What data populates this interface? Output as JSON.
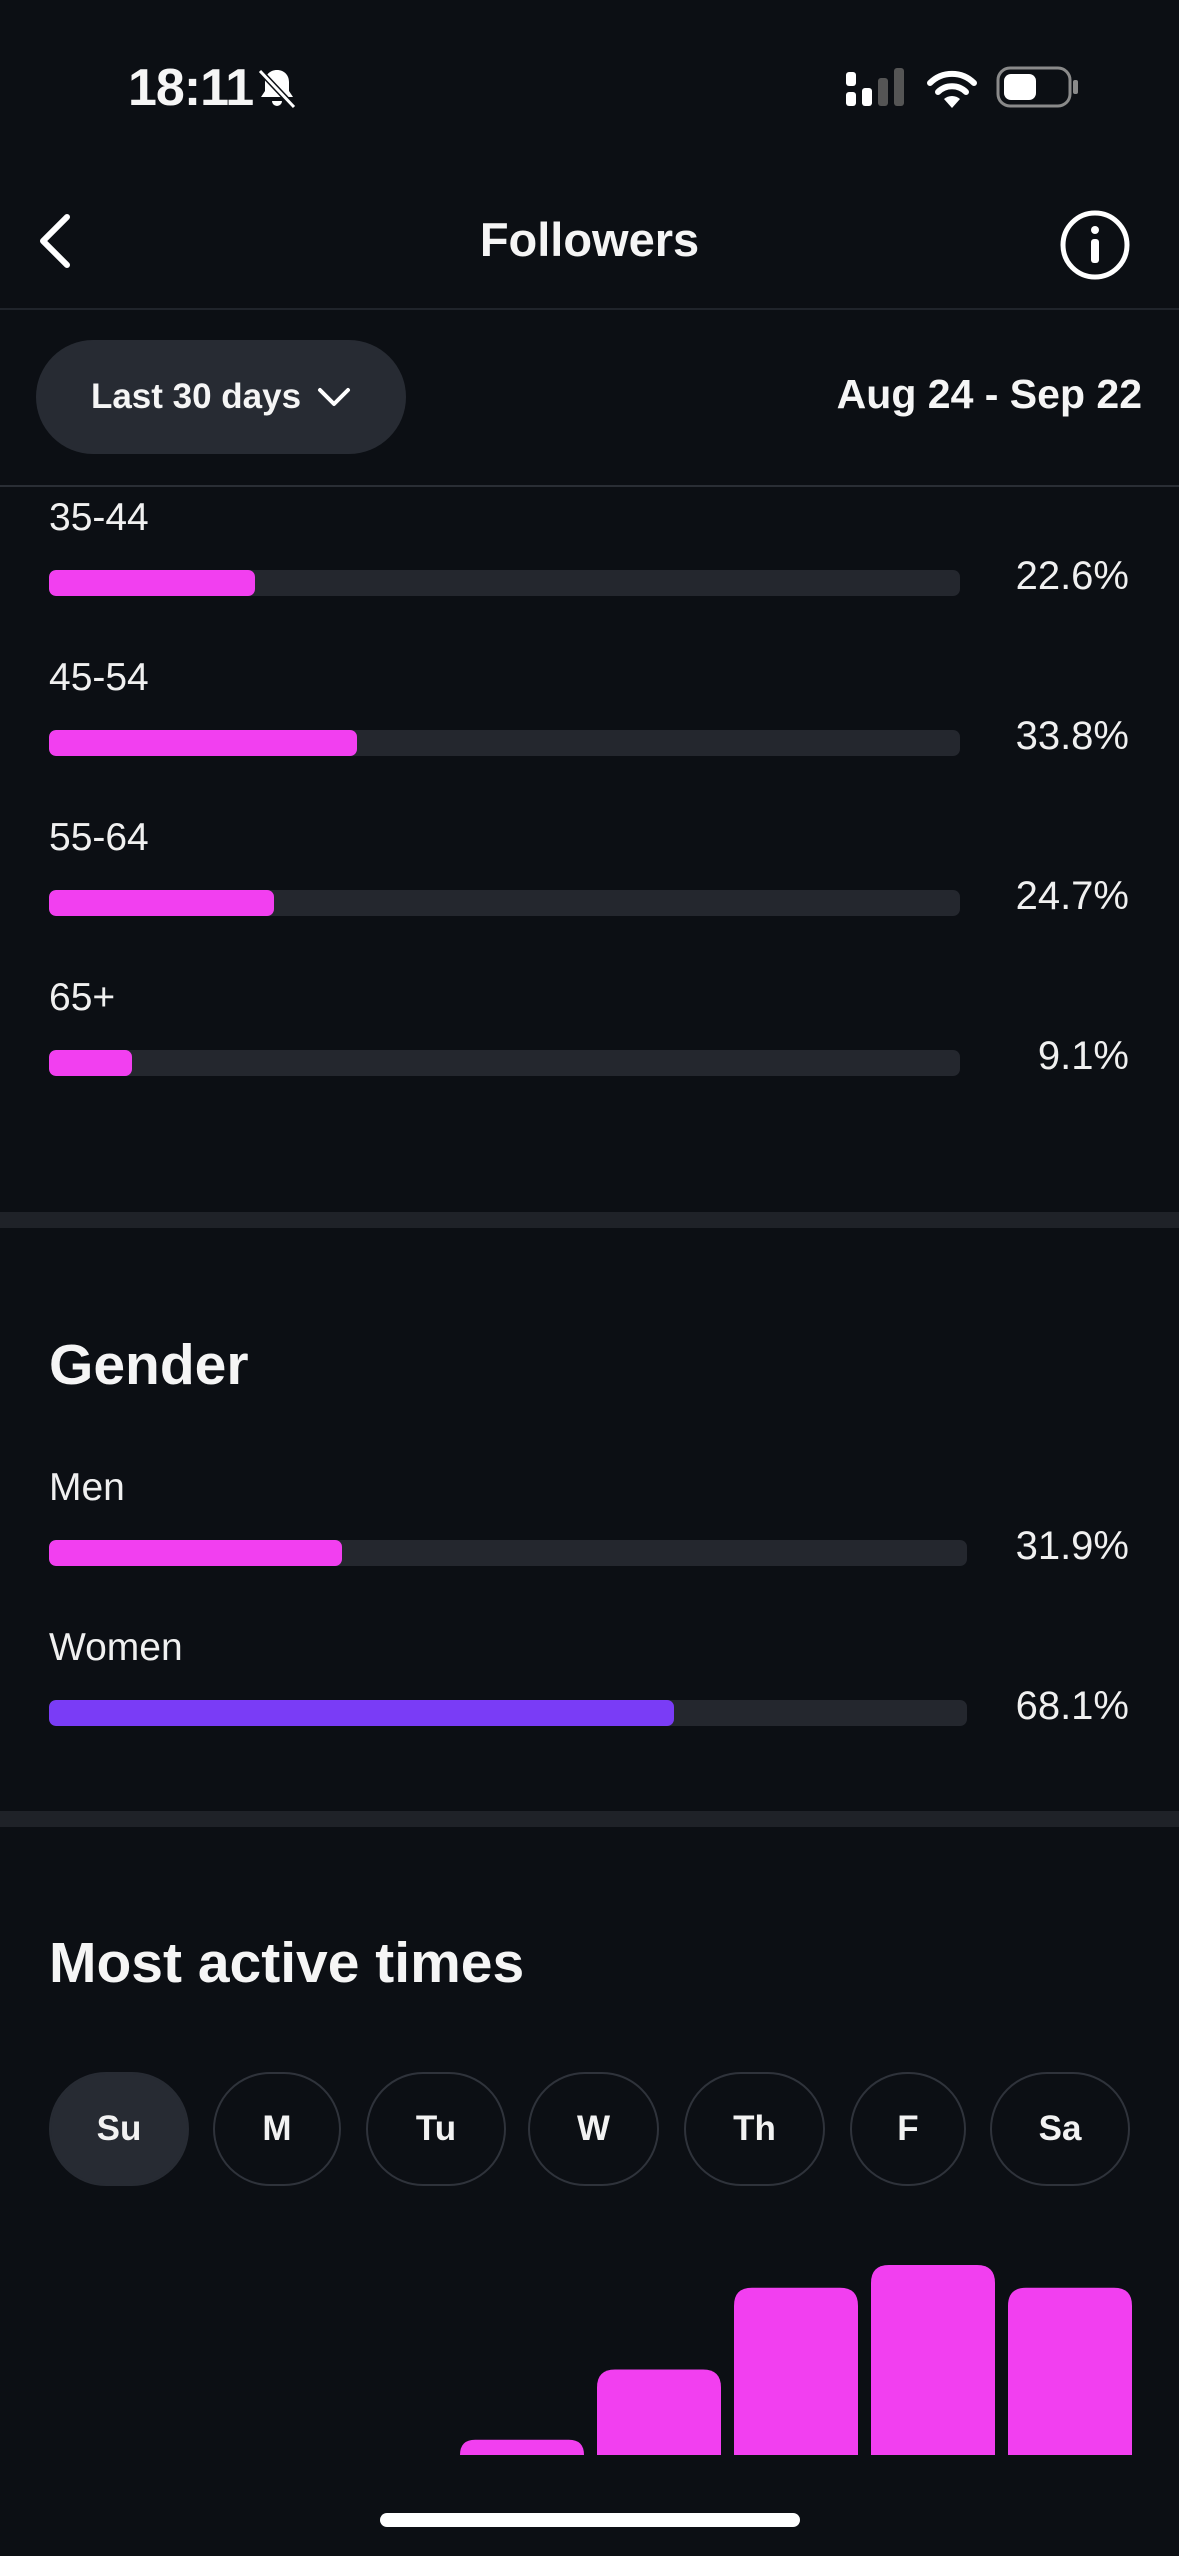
{
  "status_bar": {
    "time": "18:11"
  },
  "header": {
    "title": "Followers"
  },
  "filter": {
    "range_label": "Last 30 days",
    "date_range": "Aug 24 - Sep 22"
  },
  "age": {
    "items": [
      {
        "label": "35-44",
        "value_text": "22.6%",
        "fraction": 0.226
      },
      {
        "label": "45-54",
        "value_text": "33.8%",
        "fraction": 0.338
      },
      {
        "label": "55-64",
        "value_text": "24.7%",
        "fraction": 0.247
      },
      {
        "label": "65+",
        "value_text": "9.1%",
        "fraction": 0.091
      }
    ]
  },
  "gender": {
    "title": "Gender",
    "items": [
      {
        "label": "Men",
        "value_text": "31.9%",
        "fraction": 0.319
      },
      {
        "label": "Women",
        "value_text": "68.1%",
        "fraction": 0.681
      }
    ]
  },
  "active_times": {
    "title": "Most active times",
    "days": [
      "Su",
      "M",
      "Tu",
      "W",
      "Th",
      "F",
      "Sa"
    ],
    "selected_day": "Su"
  },
  "colors": {
    "accent_pink": "#f23ff0",
    "accent_purple": "#7a3cf6",
    "background": "#0c0f14",
    "track": "#24272e"
  },
  "chart_data": {
    "type": "bar",
    "values": [
      0,
      0,
      0,
      8,
      45,
      88,
      100,
      88
    ],
    "ylim": [
      0,
      100
    ]
  }
}
